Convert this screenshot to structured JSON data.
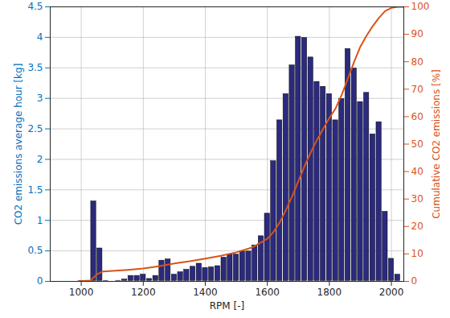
{
  "chart_data": {
    "type": "histogram",
    "xlabel": "RPM [-]",
    "ylabel": "CO2 emissions average hour [kg]",
    "y2label": "Cumulative CO2 emissions [%]",
    "xlim": [
      900,
      2040
    ],
    "xticks": [
      1000,
      1200,
      1400,
      1600,
      1800,
      2000
    ],
    "ylim": [
      0,
      4.5
    ],
    "yticks": [
      0,
      0.5,
      1,
      1.5,
      2,
      2.5,
      3,
      3.5,
      4,
      4.5
    ],
    "y2lim": [
      0,
      100
    ],
    "y2ticks": [
      0,
      10,
      20,
      30,
      40,
      50,
      60,
      70,
      80,
      90,
      100
    ],
    "grid": true,
    "bins": [
      990,
      1010,
      1030,
      1050,
      1070,
      1090,
      1110,
      1130,
      1150,
      1170,
      1190,
      1210,
      1230,
      1250,
      1270,
      1290,
      1310,
      1330,
      1350,
      1370,
      1390,
      1410,
      1430,
      1450,
      1470,
      1490,
      1510,
      1530,
      1550,
      1570,
      1590,
      1610,
      1630,
      1650,
      1670,
      1690,
      1710,
      1730,
      1750,
      1770,
      1790,
      1810,
      1830,
      1850,
      1870,
      1890,
      1910,
      1930,
      1950,
      1970,
      1990,
      2010,
      2030
    ],
    "series": [
      {
        "type": "bar",
        "color": "#2b2a7e",
        "values": [
          0.02,
          0.02,
          1.32,
          0.55,
          0.02,
          0,
          0.02,
          0.04,
          0.1,
          0.1,
          0.12,
          0.05,
          0.1,
          0.35,
          0.37,
          0.12,
          0.16,
          0.2,
          0.25,
          0.3,
          0.23,
          0.24,
          0.26,
          0.4,
          0.45,
          0.45,
          0.5,
          0.5,
          0.6,
          0.75,
          1.12,
          1.98,
          2.65,
          3.08,
          3.55,
          4.02,
          4.0,
          3.68,
          3.28,
          3.2,
          3.08,
          2.65,
          3.0,
          3.82,
          3.5,
          2.95,
          3.1,
          2.42,
          2.62,
          1.15,
          0.38,
          0.12
        ]
      },
      {
        "type": "line",
        "axis": "y2",
        "color": "#d95319",
        "x": [
          990,
          1030,
          1050,
          1070,
          1100,
          1150,
          1200,
          1250,
          1300,
          1350,
          1400,
          1450,
          1500,
          1550,
          1600,
          1620,
          1640,
          1660,
          1680,
          1700,
          1720,
          1740,
          1760,
          1780,
          1800,
          1820,
          1840,
          1860,
          1880,
          1900,
          1920,
          1940,
          1960,
          1980,
          2000,
          2020,
          2040
        ],
        "values": [
          0,
          0.3,
          2.5,
          3.6,
          3.8,
          4.2,
          4.7,
          5.5,
          6.5,
          7.3,
          8.3,
          9.3,
          10.6,
          12.3,
          15.5,
          18,
          21.5,
          26,
          31,
          36.5,
          42,
          47,
          51.5,
          55.5,
          59.5,
          63,
          68,
          74,
          80,
          85.5,
          89.5,
          93,
          96,
          98.5,
          99.6,
          100,
          100
        ]
      }
    ]
  }
}
